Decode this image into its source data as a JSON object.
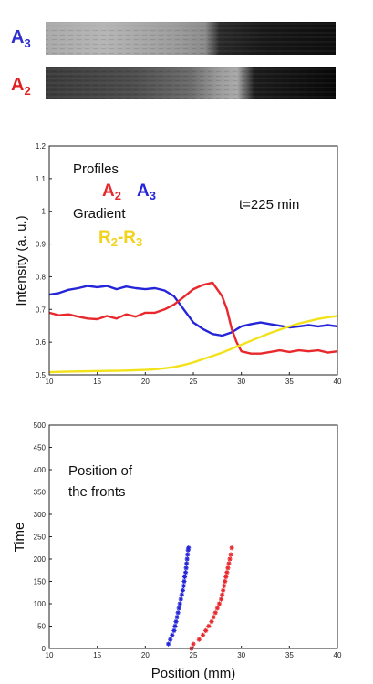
{
  "strips": [
    {
      "label": "A",
      "sub": "3",
      "color": "#2f2fd0"
    },
    {
      "label": "A",
      "sub": "2",
      "color": "#e02020"
    }
  ],
  "colors": {
    "A2": "#e8282d",
    "A3": "#2424d8",
    "gradient": "#f2e21a",
    "text": "#111111"
  },
  "chart_data": [
    {
      "type": "line",
      "ylabel": "Intensity (a. u.)",
      "xlabel": "",
      "xlim": [
        10,
        40
      ],
      "ylim": [
        0.5,
        1.2
      ],
      "xticks": [
        10,
        15,
        20,
        25,
        30,
        35,
        40
      ],
      "yticks": [
        0.5,
        0.6,
        0.7,
        0.8,
        0.9,
        1,
        1.1,
        1.2
      ],
      "annotations": {
        "profiles": "Profiles",
        "gradient": "Gradient",
        "time": "t=225 min",
        "a2": {
          "main": "A",
          "sub": "2"
        },
        "a3": {
          "main": "A",
          "sub": "3"
        },
        "r2r3": {
          "r1": "R",
          "s1": "2",
          "dash": "-",
          "r2": "R",
          "s2": "3"
        }
      },
      "series": [
        {
          "key": "A3",
          "x": [
            10,
            11,
            12,
            13,
            14,
            15,
            16,
            17,
            18,
            19,
            20,
            21,
            22,
            23,
            24,
            25,
            26,
            27,
            28,
            29,
            30,
            31,
            32,
            33,
            34,
            35,
            36,
            37,
            38,
            39,
            40
          ],
          "y": [
            0.745,
            0.75,
            0.76,
            0.765,
            0.772,
            0.768,
            0.772,
            0.762,
            0.77,
            0.765,
            0.762,
            0.765,
            0.758,
            0.74,
            0.7,
            0.66,
            0.64,
            0.625,
            0.62,
            0.63,
            0.648,
            0.655,
            0.66,
            0.655,
            0.65,
            0.645,
            0.648,
            0.652,
            0.648,
            0.652,
            0.648
          ]
        },
        {
          "key": "A2",
          "x": [
            10,
            11,
            12,
            13,
            14,
            15,
            16,
            17,
            18,
            19,
            20,
            21,
            22,
            23,
            24,
            25,
            26,
            27,
            28,
            28.5,
            29,
            29.5,
            30,
            31,
            32,
            33,
            34,
            35,
            36,
            37,
            38,
            39,
            40
          ],
          "y": [
            0.69,
            0.682,
            0.685,
            0.678,
            0.672,
            0.67,
            0.68,
            0.672,
            0.685,
            0.678,
            0.69,
            0.69,
            0.7,
            0.715,
            0.738,
            0.762,
            0.775,
            0.782,
            0.74,
            0.7,
            0.64,
            0.6,
            0.572,
            0.565,
            0.565,
            0.57,
            0.575,
            0.57,
            0.575,
            0.572,
            0.575,
            0.568,
            0.572
          ]
        },
        {
          "key": "gradient",
          "x": [
            10,
            12,
            14,
            16,
            18,
            20,
            21,
            22,
            23,
            24,
            25,
            26,
            27,
            28,
            29,
            30,
            31,
            32,
            33,
            34,
            35,
            36,
            37,
            38,
            39,
            40
          ],
          "y": [
            0.508,
            0.51,
            0.511,
            0.512,
            0.513,
            0.515,
            0.517,
            0.52,
            0.524,
            0.53,
            0.538,
            0.548,
            0.558,
            0.568,
            0.58,
            0.592,
            0.604,
            0.616,
            0.628,
            0.638,
            0.648,
            0.657,
            0.664,
            0.671,
            0.676,
            0.68
          ]
        }
      ]
    },
    {
      "type": "scatter",
      "xlabel": "Position (mm)",
      "ylabel": "Time",
      "xlim": [
        10,
        40
      ],
      "ylim": [
        0,
        500
      ],
      "xticks": [
        10,
        15,
        20,
        25,
        30,
        35,
        40
      ],
      "yticks": [
        0,
        50,
        100,
        150,
        200,
        250,
        300,
        350,
        400,
        450,
        500
      ],
      "annotation_lines": [
        "Position of",
        "the fronts"
      ],
      "series": [
        {
          "key": "A3",
          "x": [
            22.4,
            22.6,
            22.8,
            23.0,
            23.1,
            23.2,
            23.3,
            23.4,
            23.5,
            23.6,
            23.7,
            23.8,
            23.9,
            24.0,
            24.05,
            24.1,
            24.2,
            24.25,
            24.3,
            24.35,
            24.4,
            24.45,
            24.5
          ],
          "y": [
            10,
            20,
            30,
            40,
            50,
            60,
            70,
            80,
            90,
            100,
            110,
            120,
            130,
            140,
            150,
            160,
            170,
            180,
            190,
            200,
            210,
            220,
            225
          ]
        },
        {
          "key": "A2",
          "x": [
            24.8,
            25.0,
            25.6,
            26.0,
            26.3,
            26.6,
            26.9,
            27.1,
            27.3,
            27.5,
            27.7,
            27.9,
            28.0,
            28.1,
            28.2,
            28.3,
            28.4,
            28.5,
            28.6,
            28.7,
            28.8,
            28.9,
            29.0
          ],
          "y": [
            0,
            10,
            20,
            30,
            40,
            50,
            60,
            70,
            80,
            90,
            100,
            110,
            120,
            130,
            140,
            150,
            160,
            170,
            180,
            190,
            200,
            210,
            225
          ]
        }
      ]
    }
  ]
}
